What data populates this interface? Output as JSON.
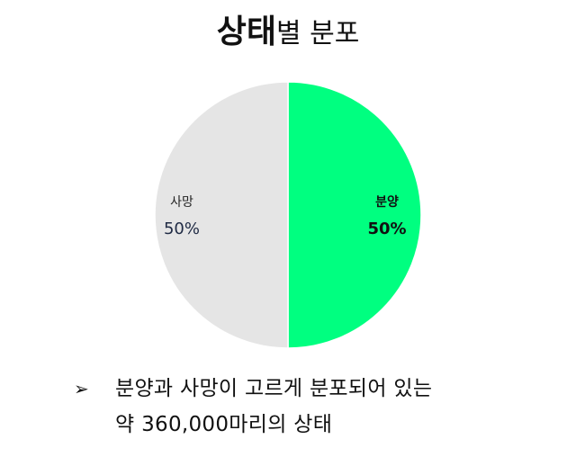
{
  "title": {
    "bold_part": "상태",
    "rest_part": "별 분포"
  },
  "chart_data": {
    "type": "pie",
    "slices": [
      {
        "label": "분양",
        "value": 50,
        "display": "50%",
        "color": "#00ff80"
      },
      {
        "label": "사망",
        "value": 50,
        "display": "50%",
        "color": "#e5e5e5"
      }
    ]
  },
  "bullet": {
    "icon": "arrowhead-bullet-icon",
    "line1": "분양과 사망이 고르게 분포되어 있는",
    "line2": "약 360,000마리의 상태"
  }
}
